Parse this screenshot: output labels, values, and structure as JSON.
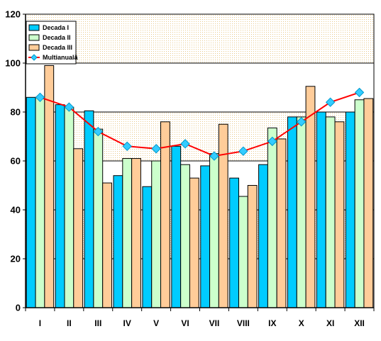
{
  "chart_data": {
    "type": "bar",
    "title": "",
    "xlabel": "",
    "ylabel": "",
    "ylim": [
      0,
      120
    ],
    "yticks": [
      0,
      20,
      40,
      60,
      80,
      100,
      120
    ],
    "grid": true,
    "legend_position": "top-left",
    "categories": [
      "I",
      "II",
      "III",
      "IV",
      "V",
      "VI",
      "VII",
      "VIII",
      "IX",
      "X",
      "XI",
      "XII"
    ],
    "series": [
      {
        "name": "Decada I",
        "type": "bar",
        "color": "#00CCFF",
        "values": [
          86,
          83,
          80.5,
          54,
          49.5,
          66,
          58,
          53,
          58.5,
          78,
          80,
          80
        ]
      },
      {
        "name": "Decada II",
        "type": "bar",
        "color": "#CCFFCC",
        "values": [
          86,
          82,
          73,
          61,
          60,
          58.5,
          63,
          45.5,
          73.5,
          78,
          78,
          85
        ]
      },
      {
        "name": "Decada III",
        "type": "bar",
        "color": "#FFCC99",
        "values": [
          99,
          65,
          51,
          61,
          76,
          53,
          75,
          50,
          69,
          90.5,
          76,
          85.5
        ]
      },
      {
        "name": "Multianuală",
        "type": "line",
        "color": "#FF0000",
        "marker_color": "#33CCFF",
        "values": [
          86,
          82,
          72,
          66,
          65,
          67,
          62,
          64,
          68,
          76,
          84,
          88
        ]
      }
    ]
  },
  "colors": {
    "plot_background": "#FFFFFF",
    "plot_band_pattern": "#F5E6C8",
    "axis": "#000000",
    "bar_outline": "#000000"
  }
}
